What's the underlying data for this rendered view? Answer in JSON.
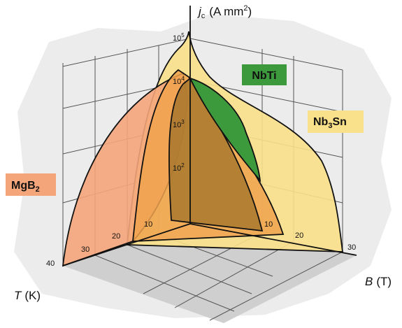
{
  "axes": {
    "jc": {
      "symbol": "j",
      "subscript": "c",
      "unit": "(A mm",
      "unit_exp": "2",
      "unit_close": ")",
      "ticks": [
        {
          "base": "10",
          "exp": "5"
        },
        {
          "base": "10",
          "exp": "4"
        },
        {
          "base": "10",
          "exp": "3"
        },
        {
          "base": "10",
          "exp": "2"
        }
      ]
    },
    "B": {
      "symbol": "B",
      "unit": "(T)",
      "ticks": [
        "10",
        "20",
        "30"
      ]
    },
    "T": {
      "symbol": "T",
      "unit": "(K)",
      "ticks": [
        "10",
        "20",
        "30",
        "40"
      ]
    }
  },
  "materials": [
    {
      "main": "NbTi"
    },
    {
      "main": "Nb",
      "sub": "3",
      "rest": "Sn"
    },
    {
      "main": "MgB",
      "sub": "2"
    }
  ]
}
